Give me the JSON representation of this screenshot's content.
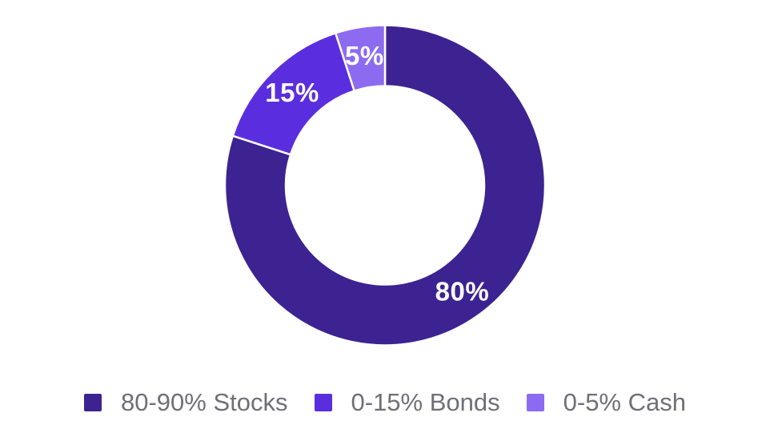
{
  "chart_data": {
    "type": "pie",
    "subtype": "donut",
    "title": "",
    "start_angle_deg": 0,
    "direction": "clockwise",
    "inner_radius_ratio": 0.62,
    "separator_color": "#FFFFFF",
    "slice_label_color": "#FFFFFF",
    "legend_position": "bottom",
    "legend_text_color": "#6F6F78",
    "segments": [
      {
        "key": "stocks",
        "value": 80,
        "label": "80%",
        "legend_label": "80-90% Stocks",
        "color": "#3C2391"
      },
      {
        "key": "bonds",
        "value": 15,
        "label": "15%",
        "legend_label": "0-15% Bonds",
        "color": "#5A2EDF"
      },
      {
        "key": "cash",
        "value": 5,
        "label": "5%",
        "legend_label": "0-5% Cash",
        "color": "#8C6BF1"
      }
    ]
  }
}
